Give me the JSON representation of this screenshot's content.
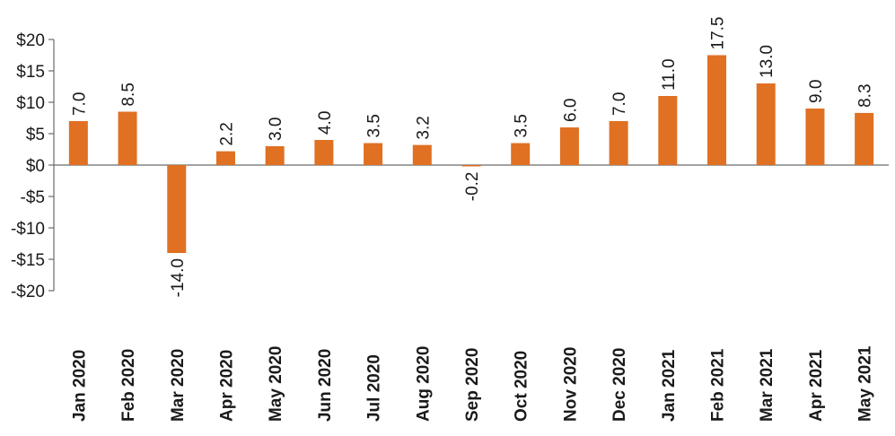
{
  "chart_data": {
    "type": "bar",
    "title": "",
    "xlabel": "",
    "ylabel": "",
    "ylim": [
      -20,
      20
    ],
    "yticks": [
      20,
      15,
      10,
      5,
      0,
      -5,
      -10,
      -15,
      -20
    ],
    "ytick_labels": [
      "$20",
      "$15",
      "$10",
      "$5",
      "$0",
      "-$5",
      "-$10",
      "-$15",
      "-$20"
    ],
    "categories": [
      "Jan 2020",
      "Feb 2020",
      "Mar 2020",
      "Apr 2020",
      "May 2020",
      "Jun 2020",
      "Jul 2020",
      "Aug 2020",
      "Sep 2020",
      "Oct 2020",
      "Nov 2020",
      "Dec 2020",
      "Jan 2021",
      "Feb 2021",
      "Mar 2021",
      "Apr 2021",
      "May 2021"
    ],
    "values": [
      7.0,
      8.5,
      -14.0,
      2.2,
      3.0,
      4.0,
      3.5,
      3.2,
      -0.2,
      3.5,
      6.0,
      7.0,
      11.0,
      17.5,
      13.0,
      9.0,
      8.3
    ],
    "data_labels": [
      "7.0",
      "8.5",
      "-14.0",
      "2.2",
      "3.0",
      "4.0",
      "3.5",
      "3.2",
      "-0.2",
      "3.5",
      "6.0",
      "7.0",
      "11.0",
      "17.5",
      "13.0",
      "9.0",
      "8.3"
    ],
    "bar_color": "#e07022",
    "grid": false,
    "legend": "none"
  }
}
